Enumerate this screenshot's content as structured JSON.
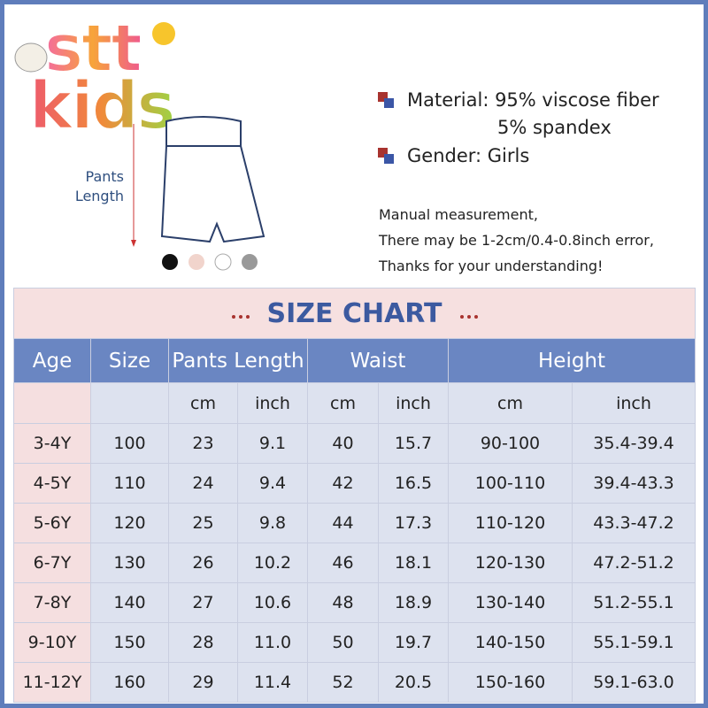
{
  "logo": {
    "line1": "stt",
    "line2": "kids"
  },
  "diagram": {
    "label_line1": "Pants",
    "label_line2": "Length"
  },
  "info": {
    "material": "Material: 95% viscose fiber",
    "material_line2": "5% spandex",
    "gender": "Gender: Girls",
    "notes": [
      "Manual measurement,",
      "There may be 1-2cm/0.4-0.8inch error,",
      "Thanks for your understanding!"
    ]
  },
  "table": {
    "title": "SIZE CHART",
    "headers": [
      "Age",
      "Size",
      "Pants Length",
      "Waist",
      "Height"
    ],
    "subheaders": [
      "cm",
      "inch",
      "cm",
      "inch",
      "cm",
      "inch"
    ],
    "rows": [
      [
        "3-4Y",
        "100",
        "23",
        "9.1",
        "40",
        "15.7",
        "90-100",
        "35.4-39.4"
      ],
      [
        "4-5Y",
        "110",
        "24",
        "9.4",
        "42",
        "16.5",
        "100-110",
        "39.4-43.3"
      ],
      [
        "5-6Y",
        "120",
        "25",
        "9.8",
        "44",
        "17.3",
        "110-120",
        "43.3-47.2"
      ],
      [
        "6-7Y",
        "130",
        "26",
        "10.2",
        "46",
        "18.1",
        "120-130",
        "47.2-51.2"
      ],
      [
        "7-8Y",
        "140",
        "27",
        "10.6",
        "48",
        "18.9",
        "130-140",
        "51.2-55.1"
      ],
      [
        "9-10Y",
        "150",
        "28",
        "11.0",
        "50",
        "19.7",
        "140-150",
        "55.1-59.1"
      ],
      [
        "11-12Y",
        "160",
        "29",
        "11.4",
        "52",
        "20.5",
        "150-160",
        "59.1-63.0"
      ]
    ]
  }
}
